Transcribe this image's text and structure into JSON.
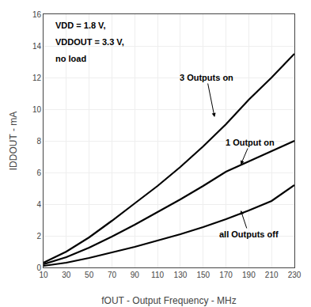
{
  "chart_data": {
    "type": "line",
    "xlabel": "fOUT - Output Frequency - MHz",
    "ylabel": "IDDOUT - mA",
    "x": [
      10,
      30,
      50,
      70,
      90,
      110,
      130,
      150,
      170,
      190,
      210,
      230
    ],
    "series": [
      {
        "color": "#000000",
        "values": [
          0.3,
          1.0,
          1.9,
          2.95,
          4.05,
          5.15,
          6.35,
          7.65,
          9.05,
          10.6,
          12.0,
          13.5
        ]
      },
      {
        "color": "#000000",
        "values": [
          0.2,
          0.65,
          1.25,
          1.95,
          2.7,
          3.5,
          4.3,
          5.15,
          6.05,
          6.7,
          7.35,
          8.0
        ]
      },
      {
        "color": "#000000",
        "values": [
          0.1,
          0.3,
          0.6,
          0.95,
          1.3,
          1.7,
          2.1,
          2.55,
          3.05,
          3.6,
          4.2,
          5.2
        ]
      }
    ],
    "xlim": [
      10,
      230
    ],
    "ylim": [
      0,
      16
    ],
    "xticks": [
      10,
      30,
      50,
      70,
      90,
      110,
      130,
      150,
      170,
      190,
      210,
      230
    ],
    "yticks": [
      0,
      2,
      4,
      6,
      8,
      10,
      12,
      14,
      16
    ],
    "grid": true,
    "annotations": [
      {
        "text": "3 Outputs on",
        "x": 160,
        "y": 9.5
      },
      {
        "text": "1 Output on",
        "x": 183,
        "y": 6.5
      },
      {
        "text": "all Outputs off",
        "x": 183,
        "y": 3.6
      },
      {
        "text": "VDD = 1.8 V,"
      },
      {
        "text": "VDDOUT = 3.3 V,"
      },
      {
        "text": "no load"
      }
    ]
  }
}
